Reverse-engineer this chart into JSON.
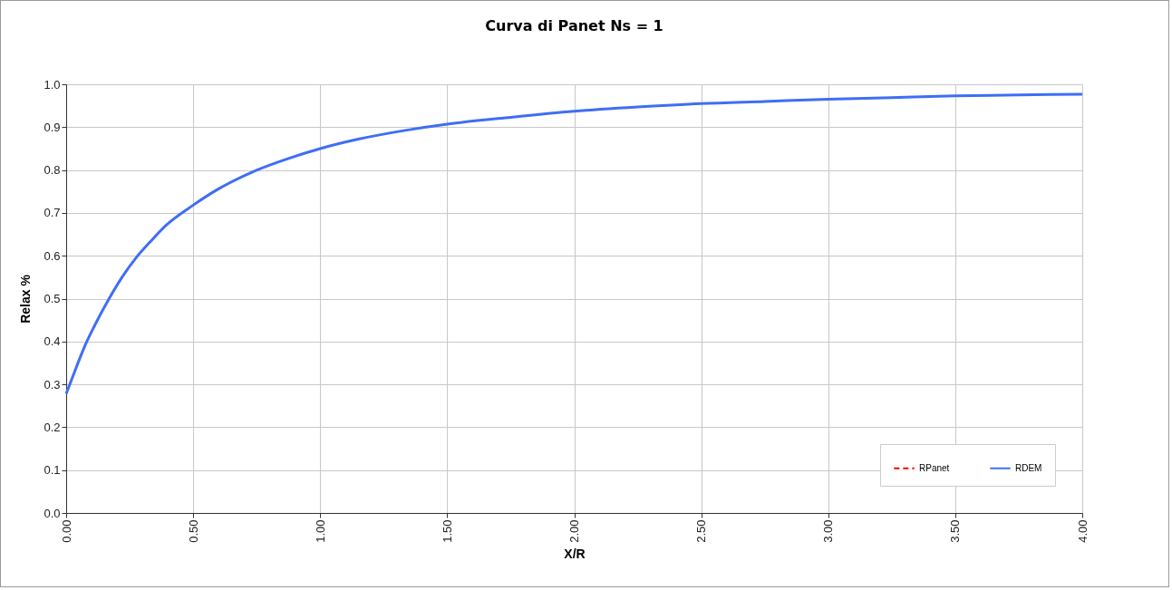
{
  "chart_data": {
    "type": "line",
    "title": "Curva di Panet Ns = 1",
    "xlabel": "X/R",
    "ylabel": "Relax %",
    "x": [
      0,
      0.04,
      0.076,
      0.112,
      0.171,
      0.22,
      0.276,
      0.33,
      0.393,
      0.5,
      0.6,
      0.747,
      0.87,
      1.0,
      1.15,
      1.34,
      1.5,
      1.75,
      2.0,
      2.25,
      2.5,
      2.75,
      3.0,
      3.25,
      3.5,
      3.75,
      4.0
    ],
    "series": [
      {
        "name": "RPanet",
        "color": "#ff0000",
        "line_style": "dashed",
        "values": [
          null,
          null,
          null,
          null,
          null,
          null,
          null,
          null,
          null,
          null,
          null,
          null,
          null,
          null,
          null,
          null,
          null,
          null,
          null,
          null,
          null,
          null,
          null,
          null,
          null,
          null,
          null
        ]
      },
      {
        "name": "RDEM",
        "color": "#3f6ef5",
        "line_style": "solid",
        "values": [
          0.278,
          0.34,
          0.393,
          0.437,
          0.502,
          0.55,
          0.596,
          0.632,
          0.671,
          0.718,
          0.756,
          0.799,
          0.826,
          0.85,
          0.872,
          0.893,
          0.907,
          0.923,
          0.937,
          0.947,
          0.955,
          0.96,
          0.965,
          0.969,
          0.973,
          0.975,
          0.977
        ]
      }
    ],
    "xlim": [
      0,
      4
    ],
    "ylim": [
      0,
      1
    ],
    "xticks": [
      {
        "value": 0,
        "label": "0.00"
      },
      {
        "value": 0.5,
        "label": "0.50"
      },
      {
        "value": 1,
        "label": "1.00"
      },
      {
        "value": 1.5,
        "label": "1.50"
      },
      {
        "value": 2,
        "label": "2.00"
      },
      {
        "value": 2.5,
        "label": "2.50"
      },
      {
        "value": 3,
        "label": "3.00"
      },
      {
        "value": 3.5,
        "label": "3.50"
      },
      {
        "value": 4,
        "label": "4.00"
      }
    ],
    "yticks": [
      {
        "value": 0,
        "label": "0.0"
      },
      0.1,
      0.2,
      0.3,
      0.4,
      0.5,
      0.6,
      0.7,
      0.8,
      0.9,
      {
        "value": 1,
        "label": "1.0"
      }
    ],
    "grid": true,
    "legend": "bottom right",
    "marker": "none"
  }
}
